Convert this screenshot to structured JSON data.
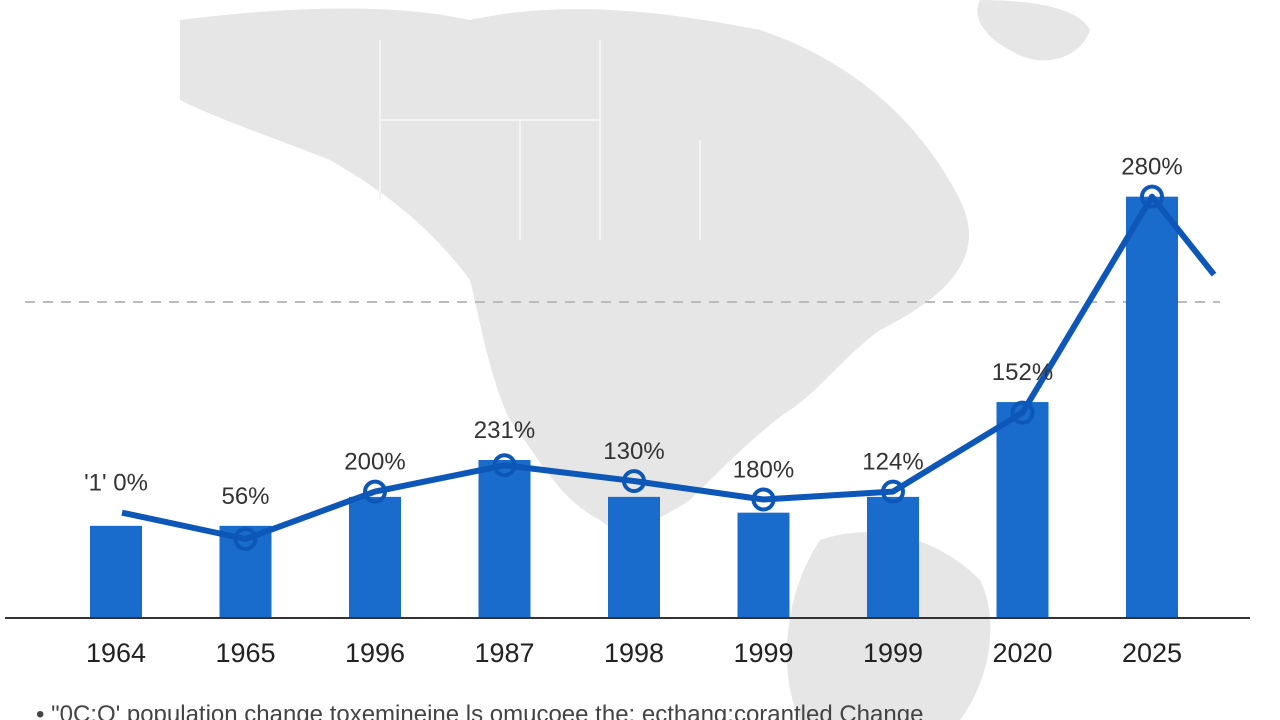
{
  "chart_data": {
    "type": "bar",
    "categories": [
      "1964",
      "1965",
      "1996",
      "1987",
      "1998",
      "1999",
      "1999",
      "2020",
      "2025"
    ],
    "values": [
      35,
      35,
      46,
      60,
      46,
      40,
      46,
      82,
      160
    ],
    "bar_labels": [
      "'1' 0%",
      "56%",
      "200%",
      "231%",
      "130%",
      "180%",
      "124%",
      "152%",
      "280%"
    ],
    "line_series": {
      "values": [
        40,
        30,
        48,
        58,
        52,
        45,
        48,
        78,
        160
      ]
    },
    "xlabel": "",
    "ylabel": "",
    "ylim": [
      0,
      180
    ],
    "reference_line": 120,
    "grid": false,
    "legend": "none",
    "bar_color": "#1a6ccc",
    "line_color": "#0d57b8"
  },
  "caption": "• \"0C:O' population change toxemineine ls omucoee the: ecthang:corantled Change"
}
